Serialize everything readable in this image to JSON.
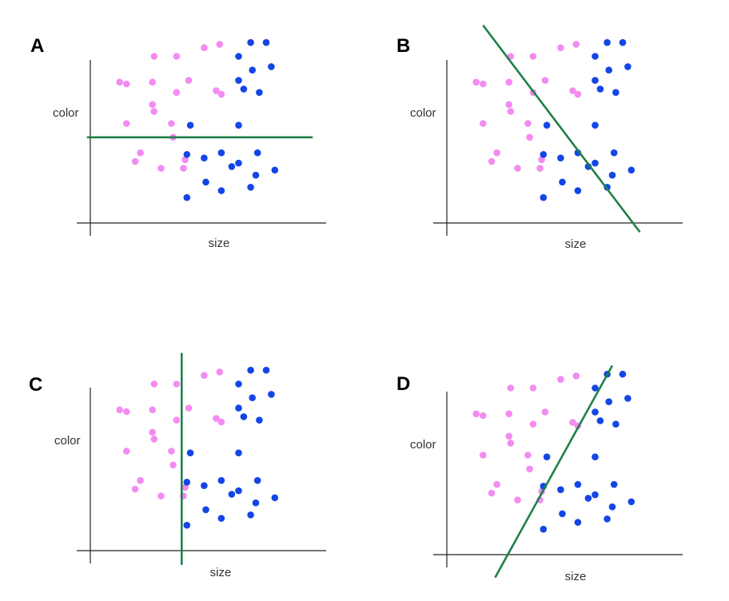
{
  "chart_data": [
    {
      "type": "scatter",
      "panel_label": "A",
      "xlabel": "size",
      "ylabel": "color",
      "series": [
        {
          "color": "#f28cf0",
          "points": [
            [
              1.5,
              5.8
            ],
            [
              3.1,
              7.4
            ],
            [
              4.4,
              7.4
            ],
            [
              6.0,
              7.9
            ],
            [
              6.9,
              8.1
            ],
            [
              1.1,
              5.9
            ],
            [
              3.0,
              5.9
            ],
            [
              4.4,
              5.3
            ],
            [
              5.1,
              6.0
            ],
            [
              6.7,
              5.4
            ],
            [
              7.0,
              5.2
            ],
            [
              1.5,
              3.5
            ],
            [
              3.0,
              4.6
            ],
            [
              4.1,
              3.5
            ],
            [
              4.2,
              2.7
            ],
            [
              3.1,
              4.2
            ],
            [
              2.3,
              1.8
            ],
            [
              2.0,
              1.3
            ],
            [
              3.5,
              0.9
            ],
            [
              4.9,
              1.4
            ],
            [
              4.8,
              0.9
            ]
          ]
        },
        {
          "color": "#1446e6",
          "points": [
            [
              8.7,
              8.2
            ],
            [
              9.6,
              8.2
            ],
            [
              8.0,
              7.4
            ],
            [
              8.8,
              6.6
            ],
            [
              9.9,
              6.8
            ],
            [
              8.0,
              6.0
            ],
            [
              8.3,
              5.5
            ],
            [
              9.2,
              5.3
            ],
            [
              5.2,
              3.4
            ],
            [
              8.0,
              3.4
            ],
            [
              5.0,
              1.7
            ],
            [
              6.0,
              1.5
            ],
            [
              7.0,
              1.8
            ],
            [
              8.0,
              1.2
            ],
            [
              7.6,
              1.0
            ],
            [
              9.1,
              1.8
            ],
            [
              9.0,
              0.5
            ],
            [
              10.1,
              0.8
            ],
            [
              6.1,
              0.1
            ],
            [
              8.7,
              -0.2
            ],
            [
              5.0,
              -0.8
            ],
            [
              7.0,
              -0.4
            ]
          ]
        }
      ],
      "divider": {
        "x1": -0.8,
        "y1": 2.7,
        "x2": 12.3,
        "y2": 2.7
      },
      "xlim": [
        -0.6,
        11.6
      ],
      "ylim": [
        -2.4,
        9.8
      ]
    },
    {
      "type": "scatter",
      "panel_label": "B",
      "xlabel": "size",
      "ylabel": "color",
      "series": [
        {
          "color": "#f28cf0",
          "points": [
            [
              1.5,
              5.8
            ],
            [
              3.1,
              7.4
            ],
            [
              4.4,
              7.4
            ],
            [
              6.0,
              7.9
            ],
            [
              6.9,
              8.1
            ],
            [
              1.1,
              5.9
            ],
            [
              3.0,
              5.9
            ],
            [
              4.4,
              5.3
            ],
            [
              5.1,
              6.0
            ],
            [
              6.7,
              5.4
            ],
            [
              7.0,
              5.2
            ],
            [
              1.5,
              3.5
            ],
            [
              3.0,
              4.6
            ],
            [
              4.1,
              3.5
            ],
            [
              4.2,
              2.7
            ],
            [
              3.1,
              4.2
            ],
            [
              2.3,
              1.8
            ],
            [
              2.0,
              1.3
            ],
            [
              3.5,
              0.9
            ],
            [
              4.9,
              1.4
            ],
            [
              4.8,
              0.9
            ]
          ]
        },
        {
          "color": "#1446e6",
          "points": [
            [
              8.7,
              8.2
            ],
            [
              9.6,
              8.2
            ],
            [
              8.0,
              7.4
            ],
            [
              8.8,
              6.6
            ],
            [
              9.9,
              6.8
            ],
            [
              8.0,
              6.0
            ],
            [
              8.3,
              5.5
            ],
            [
              9.2,
              5.3
            ],
            [
              5.2,
              3.4
            ],
            [
              8.0,
              3.4
            ],
            [
              5.0,
              1.7
            ],
            [
              6.0,
              1.5
            ],
            [
              7.0,
              1.8
            ],
            [
              8.0,
              1.2
            ],
            [
              7.6,
              1.0
            ],
            [
              9.1,
              1.8
            ],
            [
              9.0,
              0.5
            ],
            [
              10.1,
              0.8
            ],
            [
              6.1,
              0.1
            ],
            [
              8.7,
              -0.2
            ],
            [
              5.0,
              -0.8
            ],
            [
              7.0,
              -0.4
            ]
          ]
        }
      ],
      "divider": {
        "x1": 1.5,
        "y1": 9.2,
        "x2": 10.6,
        "y2": -2.8
      },
      "xlim": [
        -0.6,
        11.6
      ],
      "ylim": [
        -2.4,
        9.8
      ]
    },
    {
      "type": "scatter",
      "panel_label": "C",
      "xlabel": "size",
      "ylabel": "color",
      "series": [
        {
          "color": "#f28cf0",
          "points": [
            [
              1.5,
              5.8
            ],
            [
              3.1,
              7.4
            ],
            [
              4.4,
              7.4
            ],
            [
              6.0,
              7.9
            ],
            [
              6.9,
              8.1
            ],
            [
              1.1,
              5.9
            ],
            [
              3.0,
              5.9
            ],
            [
              4.4,
              5.3
            ],
            [
              5.1,
              6.0
            ],
            [
              6.7,
              5.4
            ],
            [
              7.0,
              5.2
            ],
            [
              1.5,
              3.5
            ],
            [
              3.0,
              4.6
            ],
            [
              4.1,
              3.5
            ],
            [
              4.2,
              2.7
            ],
            [
              3.1,
              4.2
            ],
            [
              2.3,
              1.8
            ],
            [
              2.0,
              1.3
            ],
            [
              3.5,
              0.9
            ],
            [
              4.9,
              1.4
            ],
            [
              4.8,
              0.9
            ]
          ]
        },
        {
          "color": "#1446e6",
          "points": [
            [
              8.7,
              8.2
            ],
            [
              9.6,
              8.2
            ],
            [
              8.0,
              7.4
            ],
            [
              8.8,
              6.6
            ],
            [
              9.9,
              6.8
            ],
            [
              8.0,
              6.0
            ],
            [
              8.3,
              5.5
            ],
            [
              9.2,
              5.3
            ],
            [
              5.2,
              3.4
            ],
            [
              8.0,
              3.4
            ],
            [
              5.0,
              1.7
            ],
            [
              6.0,
              1.5
            ],
            [
              7.0,
              1.8
            ],
            [
              8.0,
              1.2
            ],
            [
              7.6,
              1.0
            ],
            [
              9.1,
              1.8
            ],
            [
              9.0,
              0.5
            ],
            [
              10.1,
              0.8
            ],
            [
              6.1,
              0.1
            ],
            [
              8.7,
              -0.2
            ],
            [
              5.0,
              -0.8
            ],
            [
              7.0,
              -0.4
            ]
          ]
        }
      ],
      "divider": {
        "x1": 4.7,
        "y1": 9.2,
        "x2": 4.7,
        "y2": -3.1
      },
      "xlim": [
        -0.6,
        11.6
      ],
      "ylim": [
        -2.4,
        9.8
      ]
    },
    {
      "type": "scatter",
      "panel_label": "D",
      "xlabel": "size",
      "ylabel": "color",
      "series": [
        {
          "color": "#f28cf0",
          "points": [
            [
              1.5,
              5.8
            ],
            [
              3.1,
              7.4
            ],
            [
              4.4,
              7.4
            ],
            [
              6.0,
              7.9
            ],
            [
              6.9,
              8.1
            ],
            [
              1.1,
              5.9
            ],
            [
              3.0,
              5.9
            ],
            [
              4.4,
              5.3
            ],
            [
              5.1,
              6.0
            ],
            [
              6.7,
              5.4
            ],
            [
              7.0,
              5.2
            ],
            [
              1.5,
              3.5
            ],
            [
              3.0,
              4.6
            ],
            [
              4.1,
              3.5
            ],
            [
              4.2,
              2.7
            ],
            [
              3.1,
              4.2
            ],
            [
              2.3,
              1.8
            ],
            [
              2.0,
              1.3
            ],
            [
              3.5,
              0.9
            ],
            [
              4.9,
              1.4
            ],
            [
              4.8,
              0.9
            ]
          ]
        },
        {
          "color": "#1446e6",
          "points": [
            [
              8.7,
              8.2
            ],
            [
              9.6,
              8.2
            ],
            [
              8.0,
              7.4
            ],
            [
              8.8,
              6.6
            ],
            [
              9.9,
              6.8
            ],
            [
              8.0,
              6.0
            ],
            [
              8.3,
              5.5
            ],
            [
              9.2,
              5.3
            ],
            [
              5.2,
              3.4
            ],
            [
              8.0,
              3.4
            ],
            [
              5.0,
              1.7
            ],
            [
              6.0,
              1.5
            ],
            [
              7.0,
              1.8
            ],
            [
              8.0,
              1.2
            ],
            [
              7.6,
              1.0
            ],
            [
              9.1,
              1.8
            ],
            [
              9.0,
              0.5
            ],
            [
              10.1,
              0.8
            ],
            [
              6.1,
              0.1
            ],
            [
              8.7,
              -0.2
            ],
            [
              5.0,
              -0.8
            ],
            [
              7.0,
              -0.4
            ]
          ]
        }
      ],
      "divider": {
        "x1": 2.2,
        "y1": -3.6,
        "x2": 9.0,
        "y2": 8.7
      },
      "xlim": [
        -0.6,
        11.6
      ],
      "ylim": [
        -2.4,
        9.8
      ]
    }
  ],
  "colors": {
    "divider": "#1e8049",
    "axis": "#222222"
  }
}
